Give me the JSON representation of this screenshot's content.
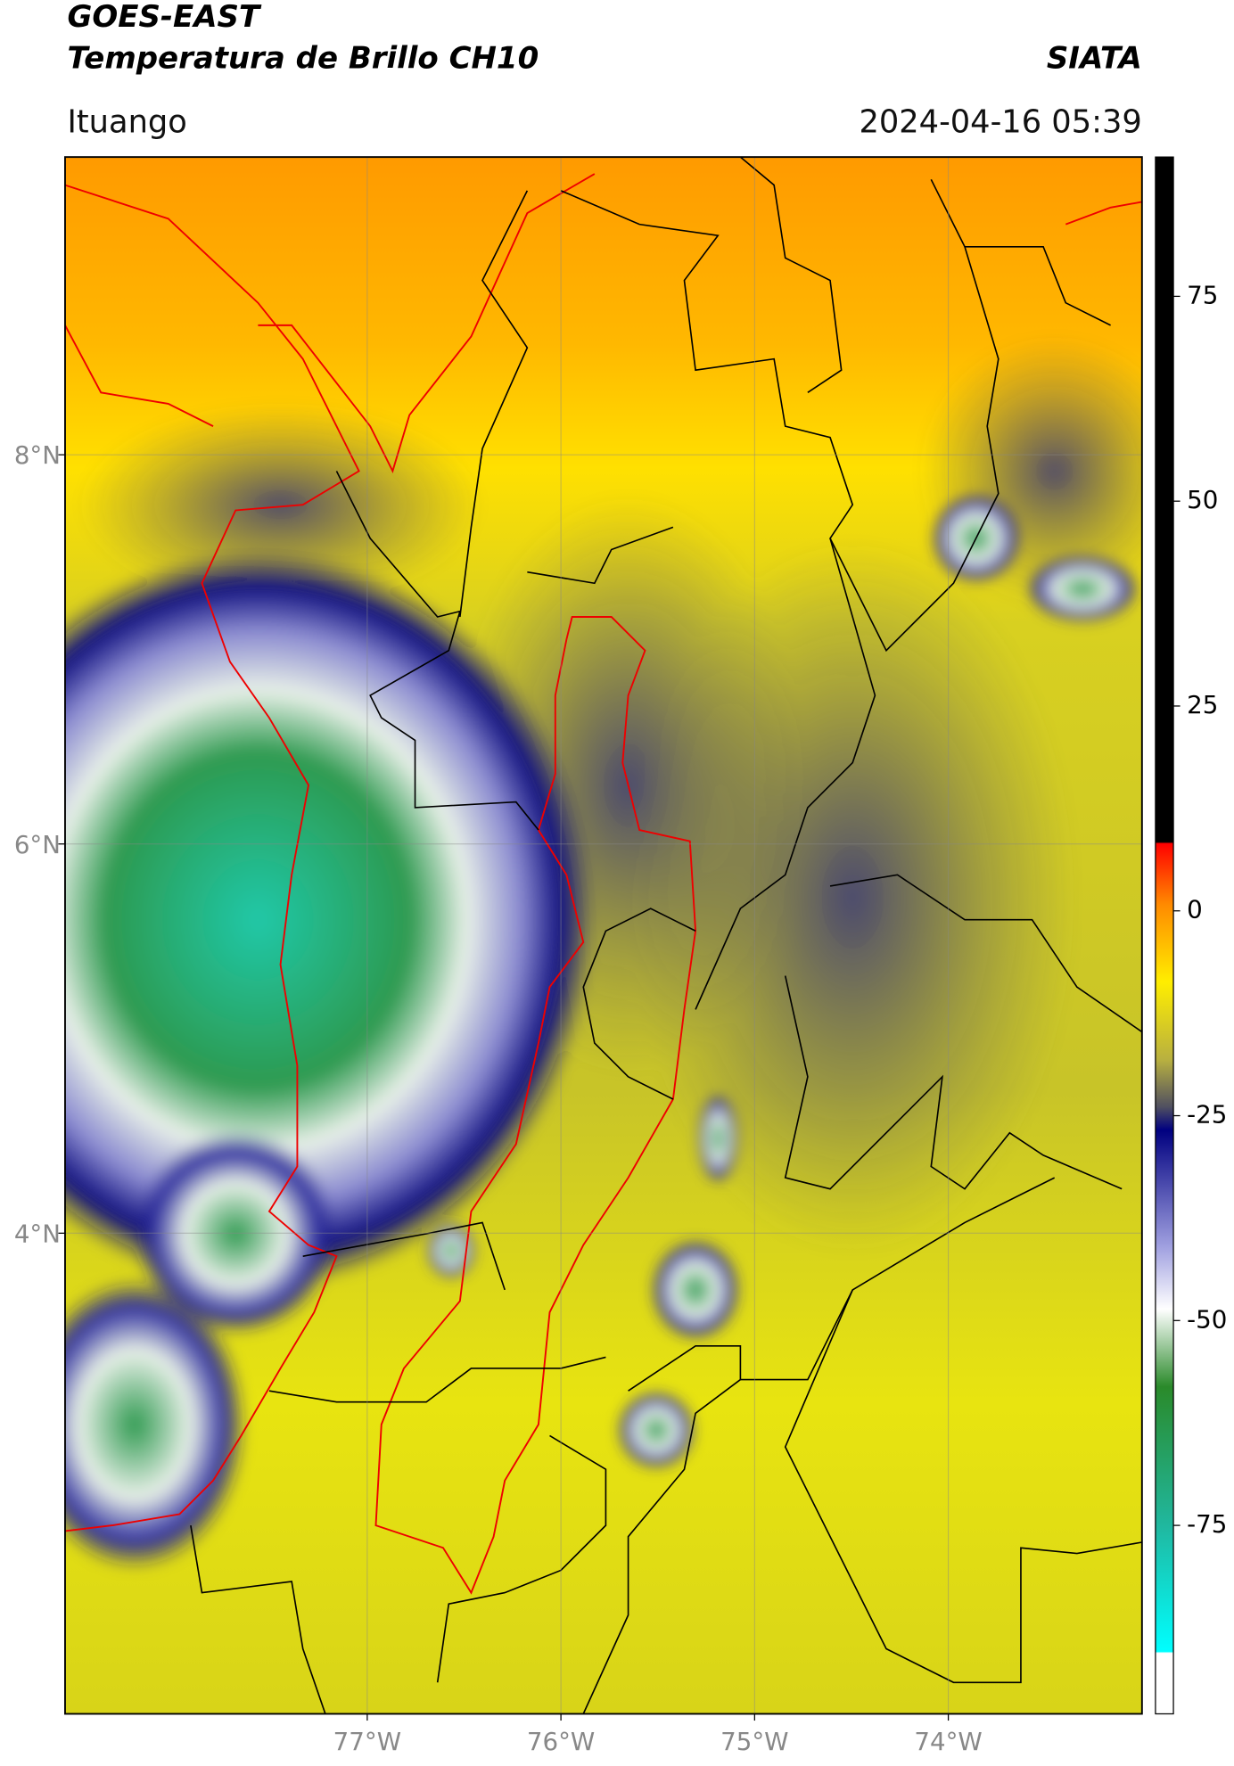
{
  "header": {
    "satellite": "GOES-EAST",
    "product": "Temperatura de Brillo CH10",
    "agency": "SIATA",
    "region": "Ituango",
    "datetime": "2024-04-16 05:39"
  },
  "map": {
    "xlim": [
      -78.56,
      -73.0
    ],
    "ylim": [
      1.53,
      9.53
    ],
    "xticks": [
      {
        "value": -77,
        "label": "77°W"
      },
      {
        "value": -76,
        "label": "76°W"
      },
      {
        "value": -75,
        "label": "75°W"
      },
      {
        "value": -74,
        "label": "74°W"
      }
    ],
    "yticks": [
      {
        "value": 8,
        "label": "8°N"
      },
      {
        "value": 6,
        "label": "6°N"
      },
      {
        "value": 4,
        "label": "4°N"
      }
    ],
    "grid": true
  },
  "colorbar": {
    "clim": [
      -98,
      92
    ],
    "ticks": [
      75,
      50,
      25,
      0,
      -25,
      -50,
      -75
    ]
  }
}
